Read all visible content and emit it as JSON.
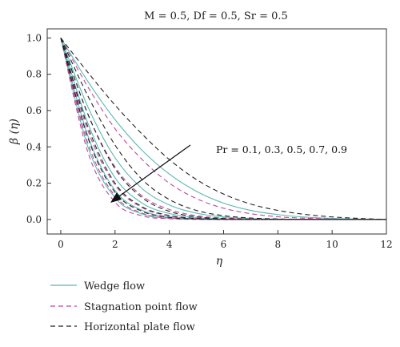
{
  "chart_data": {
    "type": "line",
    "title": "M = 0.5, Df = 0.5, Sr = 0.5",
    "xlabel": "η",
    "ylabel": "β (η)",
    "xlim": [
      -0.5,
      12
    ],
    "ylim": [
      -0.08,
      1.05
    ],
    "xticks": [
      0,
      2,
      4,
      6,
      8,
      10,
      12
    ],
    "yticks": [
      0.0,
      0.2,
      0.4,
      0.6,
      0.8,
      1.0
    ],
    "xtick_labels": [
      "0",
      "2",
      "4",
      "6",
      "8",
      "10",
      "12"
    ],
    "ytick_labels": [
      "0.0",
      "0.2",
      "0.4",
      "0.6",
      "0.8",
      "1.0"
    ],
    "grid": false,
    "legend_position": "bottom-left",
    "annotation": "Pr = 0.1, 0.3, 0.5, 0.7, 0.9",
    "legend": [
      {
        "label": "Wedge flow",
        "color": "#5bb8b0",
        "style": "solid"
      },
      {
        "label": "Stagnation point flow",
        "color": "#c0479a",
        "style": "dashed"
      },
      {
        "label": "Horizontal plate flow",
        "color": "#222222",
        "style": "dashed"
      }
    ],
    "x": [
      0,
      1,
      2,
      3,
      4,
      5,
      6,
      7,
      8,
      9,
      10,
      11,
      12
    ],
    "series": [
      {
        "name": "Wedge flow",
        "pr": 0.1,
        "values": [
          1.0,
          0.76,
          0.55,
          0.38,
          0.25,
          0.155,
          0.09,
          0.05,
          0.027,
          0.013,
          0.006,
          0.002,
          0.0
        ]
      },
      {
        "name": "Wedge flow",
        "pr": 0.3,
        "values": [
          1.0,
          0.62,
          0.34,
          0.17,
          0.08,
          0.035,
          0.014,
          0.005,
          0.002,
          0.0007,
          0.0002,
          0.0001,
          0.0
        ]
      },
      {
        "name": "Wedge flow",
        "pr": 0.5,
        "values": [
          1.0,
          0.53,
          0.23,
          0.09,
          0.033,
          0.011,
          0.003,
          0.001,
          0.0003,
          0.0,
          0.0,
          0.0,
          0.0
        ]
      },
      {
        "name": "Wedge flow",
        "pr": 0.7,
        "values": [
          1.0,
          0.46,
          0.16,
          0.05,
          0.014,
          0.004,
          0.001,
          0.0002,
          0.0,
          0.0,
          0.0,
          0.0,
          0.0
        ]
      },
      {
        "name": "Wedge flow",
        "pr": 0.9,
        "values": [
          1.0,
          0.4,
          0.12,
          0.03,
          0.007,
          0.0015,
          0.0003,
          0.0,
          0.0,
          0.0,
          0.0,
          0.0,
          0.0
        ]
      },
      {
        "name": "Stagnation point flow",
        "pr": 0.1,
        "values": [
          1.0,
          0.73,
          0.5,
          0.33,
          0.2,
          0.115,
          0.062,
          0.032,
          0.015,
          0.007,
          0.003,
          0.001,
          0.0
        ]
      },
      {
        "name": "Stagnation point flow",
        "pr": 0.3,
        "values": [
          1.0,
          0.58,
          0.29,
          0.13,
          0.055,
          0.021,
          0.008,
          0.003,
          0.001,
          0.0003,
          0.0001,
          0.0,
          0.0
        ]
      },
      {
        "name": "Stagnation point flow",
        "pr": 0.5,
        "values": [
          1.0,
          0.49,
          0.19,
          0.065,
          0.021,
          0.006,
          0.0016,
          0.0004,
          0.0001,
          0.0,
          0.0,
          0.0,
          0.0
        ]
      },
      {
        "name": "Stagnation point flow",
        "pr": 0.7,
        "values": [
          1.0,
          0.42,
          0.13,
          0.035,
          0.008,
          0.002,
          0.0004,
          0.0001,
          0.0,
          0.0,
          0.0,
          0.0,
          0.0
        ]
      },
      {
        "name": "Stagnation point flow",
        "pr": 0.9,
        "values": [
          1.0,
          0.37,
          0.095,
          0.02,
          0.004,
          0.0007,
          0.0001,
          0.0,
          0.0,
          0.0,
          0.0,
          0.0,
          0.0
        ]
      },
      {
        "name": "Horizontal plate flow",
        "pr": 0.1,
        "values": [
          1.0,
          0.81,
          0.63,
          0.47,
          0.33,
          0.22,
          0.14,
          0.085,
          0.05,
          0.028,
          0.014,
          0.006,
          0.0
        ]
      },
      {
        "name": "Horizontal plate flow",
        "pr": 0.3,
        "values": [
          1.0,
          0.68,
          0.41,
          0.22,
          0.11,
          0.05,
          0.021,
          0.008,
          0.003,
          0.001,
          0.0003,
          0.0001,
          0.0
        ]
      },
      {
        "name": "Horizontal plate flow",
        "pr": 0.5,
        "values": [
          1.0,
          0.58,
          0.28,
          0.12,
          0.045,
          0.015,
          0.005,
          0.0015,
          0.0004,
          0.0001,
          0.0,
          0.0,
          0.0
        ]
      },
      {
        "name": "Horizontal plate flow",
        "pr": 0.7,
        "values": [
          1.0,
          0.51,
          0.2,
          0.07,
          0.022,
          0.006,
          0.0016,
          0.0004,
          0.0001,
          0.0,
          0.0,
          0.0,
          0.0
        ]
      },
      {
        "name": "Horizontal plate flow",
        "pr": 0.9,
        "values": [
          1.0,
          0.45,
          0.15,
          0.045,
          0.012,
          0.003,
          0.0007,
          0.0001,
          0.0,
          0.0,
          0.0,
          0.0,
          0.0
        ]
      }
    ]
  }
}
